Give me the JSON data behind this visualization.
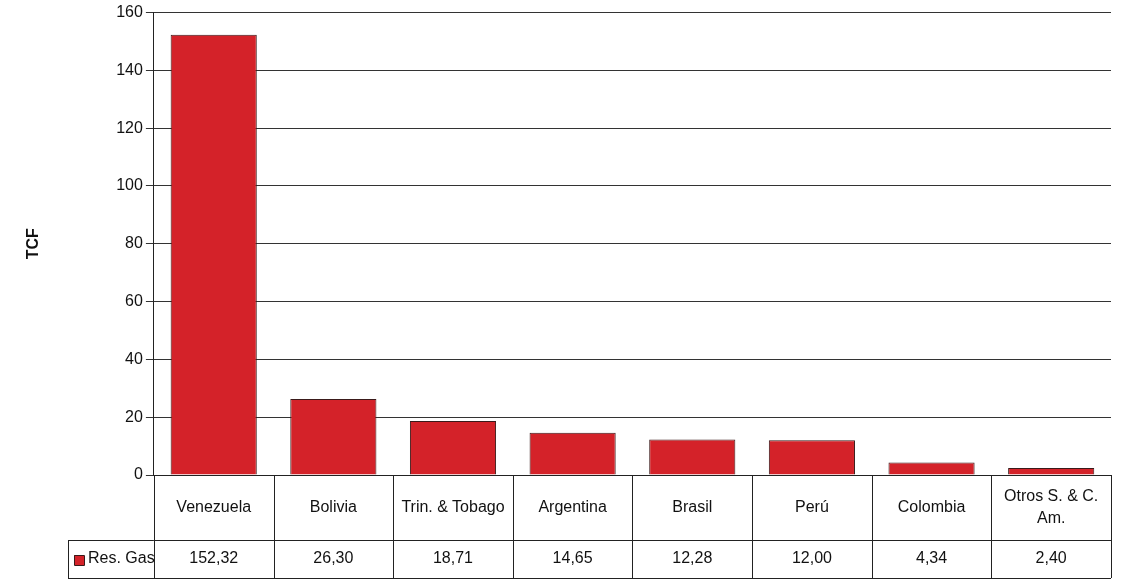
{
  "chart_data": {
    "type": "bar",
    "ylabel": "TCF",
    "categories": [
      "Venezuela",
      "Bolivia",
      "Trin. & Tobago",
      "Argentina",
      "Brasil",
      "Perú",
      "Colombia",
      "Otros S. & C. Am."
    ],
    "series": [
      {
        "name": "Res. Gas",
        "color": "#d42229",
        "values": [
          152.32,
          26.3,
          18.71,
          14.65,
          12.28,
          12.0,
          4.34,
          2.4
        ],
        "value_labels": [
          "152,32",
          "26,30",
          "18,71",
          "14,65",
          "12,28",
          "12,00",
          "4,34",
          "2,40"
        ]
      }
    ],
    "ylim": [
      0,
      160
    ],
    "yticks": [
      0,
      20,
      40,
      60,
      80,
      100,
      120,
      140,
      160
    ],
    "grid": "y",
    "legend": "bottom left"
  }
}
